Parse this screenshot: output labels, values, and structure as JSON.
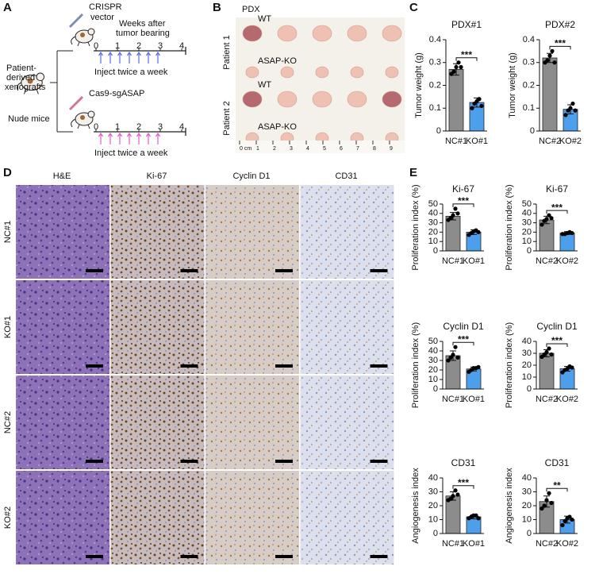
{
  "panel_a": {
    "letter": "A",
    "vector": [
      "CRISPR",
      "vector"
    ],
    "weeks": [
      "Weeks after",
      "tumor bearing"
    ],
    "xenografts": [
      "Patient-",
      "derived",
      "xenografts"
    ],
    "mice": "Nude mice",
    "sgasap": "Cas9-sgASAP",
    "timeline": [
      "0",
      "1",
      "2",
      "3",
      "4"
    ],
    "inject": "Inject twice a week"
  },
  "panel_b": {
    "letter": "B",
    "title": "PDX",
    "patients": [
      "Patient 1",
      "Patient 2"
    ],
    "groups": [
      "WT",
      "ASAP-KO"
    ],
    "ruler": [
      "0 cm",
      "1",
      "2",
      "3",
      "4",
      "5",
      "6",
      "7",
      "8",
      "9"
    ]
  },
  "panel_c": {
    "letter": "C"
  },
  "panel_d": {
    "letter": "D",
    "stains": [
      "H&E",
      "Ki-67",
      "Cyclin D1",
      "CD31"
    ],
    "groups": [
      "NC#1",
      "KO#1",
      "NC#2",
      "KO#2"
    ]
  },
  "panel_e": {
    "letter": "E"
  },
  "chart_data": [
    {
      "type": "bar",
      "title": "PDX#1",
      "y_label": "Tumor weight (g)",
      "categories": [
        "NC#1",
        "KO#1"
      ],
      "values": [
        0.27,
        0.125
      ],
      "errors": [
        0.025,
        0.02
      ],
      "points": [
        [
          0.25,
          0.26,
          0.28,
          0.3,
          0.28
        ],
        [
          0.1,
          0.12,
          0.13,
          0.14,
          0.11
        ]
      ],
      "colors": [
        "#8c8c8c",
        "#4d9fec"
      ],
      "ylim": [
        0,
        0.4
      ],
      "yticks": [
        0,
        0.1,
        0.2,
        0.3,
        0.4
      ],
      "significance": "***"
    },
    {
      "type": "bar",
      "title": "PDX#2",
      "y_label": "Tumor weight (g)",
      "categories": [
        "NC#2",
        "KO#2"
      ],
      "values": [
        0.32,
        0.095
      ],
      "errors": [
        0.02,
        0.02
      ],
      "points": [
        [
          0.3,
          0.31,
          0.33,
          0.35,
          0.3
        ],
        [
          0.07,
          0.09,
          0.1,
          0.12,
          0.09
        ]
      ],
      "colors": [
        "#8c8c8c",
        "#4d9fec"
      ],
      "ylim": [
        0,
        0.4
      ],
      "yticks": [
        0,
        0.1,
        0.2,
        0.3,
        0.4
      ],
      "significance": "***"
    },
    {
      "type": "bar",
      "title": "Ki-67",
      "y_label": "Proliferation index (%)",
      "categories": [
        "NC#1",
        "KO#1"
      ],
      "values": [
        37,
        20
      ],
      "errors": [
        4,
        2.5
      ],
      "points": [
        [
          33,
          35,
          38,
          45,
          40
        ],
        [
          17,
          19,
          21,
          22,
          20
        ]
      ],
      "colors": [
        "#8c8c8c",
        "#4d9fec"
      ],
      "ylim": [
        0,
        50
      ],
      "yticks": [
        0,
        10,
        20,
        30,
        40,
        50
      ],
      "significance": "***"
    },
    {
      "type": "bar",
      "title": "Ki-67",
      "y_label": "Proliferation index (%)",
      "categories": [
        "NC#2",
        "KO#2"
      ],
      "values": [
        33,
        19
      ],
      "errors": [
        4,
        1.5
      ],
      "points": [
        [
          28,
          32,
          34,
          38,
          35
        ],
        [
          18,
          18,
          19,
          20,
          19
        ]
      ],
      "colors": [
        "#8c8c8c",
        "#4d9fec"
      ],
      "ylim": [
        0,
        50
      ],
      "yticks": [
        0,
        10,
        20,
        30,
        40,
        50
      ],
      "significance": "***"
    },
    {
      "type": "bar",
      "title": "Cyclin D1",
      "y_label": "Proliferation index (%)",
      "categories": [
        "NC#1",
        "KO#1"
      ],
      "values": [
        35,
        21
      ],
      "errors": [
        5,
        2
      ],
      "points": [
        [
          30,
          33,
          36,
          44,
          33
        ],
        [
          18,
          20,
          22,
          22,
          23
        ]
      ],
      "colors": [
        "#8c8c8c",
        "#4d9fec"
      ],
      "ylim": [
        0,
        50
      ],
      "yticks": [
        0,
        10,
        20,
        30,
        40,
        50
      ],
      "significance": "***"
    },
    {
      "type": "bar",
      "title": "Cyclin D1",
      "y_label": "Proliferation index (%)",
      "categories": [
        "NC#2",
        "KO#2"
      ],
      "values": [
        30,
        17
      ],
      "errors": [
        3,
        2
      ],
      "points": [
        [
          27,
          29,
          31,
          34,
          29
        ],
        [
          14,
          16,
          17,
          19,
          18
        ]
      ],
      "colors": [
        "#8c8c8c",
        "#4d9fec"
      ],
      "ylim": [
        0,
        40
      ],
      "yticks": [
        0,
        10,
        20,
        30,
        40
      ],
      "significance": "***"
    },
    {
      "type": "bar",
      "title": "CD31",
      "y_label": "Angiogenesis index",
      "categories": [
        "NC#1",
        "KO#1"
      ],
      "values": [
        27,
        12
      ],
      "errors": [
        3,
        1.5
      ],
      "points": [
        [
          24,
          25,
          27,
          31,
          28
        ],
        [
          11,
          12,
          13,
          13,
          11
        ]
      ],
      "colors": [
        "#8c8c8c",
        "#4d9fec"
      ],
      "ylim": [
        0,
        40
      ],
      "yticks": [
        0,
        10,
        20,
        30,
        40
      ],
      "significance": "***"
    },
    {
      "type": "bar",
      "title": "CD31",
      "y_label": "Angiogenesis index",
      "categories": [
        "NC#2",
        "KO#2"
      ],
      "values": [
        23,
        10
      ],
      "errors": [
        4,
        2.5
      ],
      "points": [
        [
          18,
          20,
          24,
          29,
          22
        ],
        [
          6,
          9,
          11,
          12,
          10
        ]
      ],
      "colors": [
        "#8c8c8c",
        "#4d9fec"
      ],
      "ylim": [
        0,
        40
      ],
      "yticks": [
        0,
        10,
        20,
        30,
        40
      ],
      "significance": "**"
    }
  ]
}
